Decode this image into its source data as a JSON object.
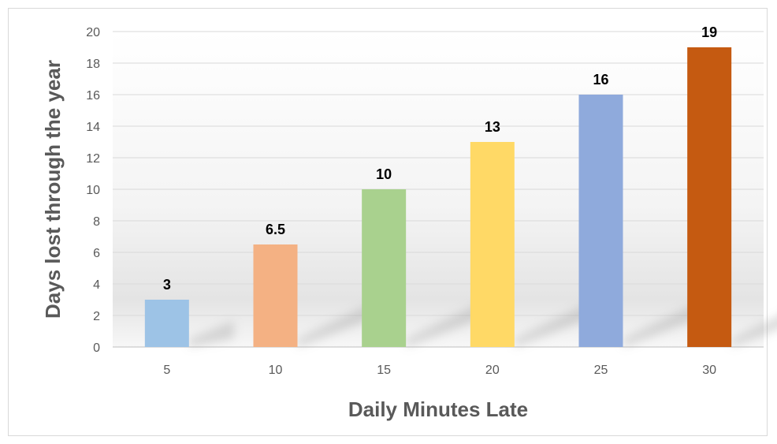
{
  "chart_data": {
    "type": "bar",
    "title": "",
    "xlabel": "Daily Minutes Late",
    "ylabel": "Days lost through the year",
    "categories": [
      "5",
      "10",
      "15",
      "20",
      "25",
      "30"
    ],
    "values": [
      3,
      6.5,
      10,
      13,
      16,
      19
    ],
    "data_labels": [
      "3",
      "6.5",
      "10",
      "13",
      "16",
      "19"
    ],
    "colors": [
      "#9DC3E6",
      "#F4B183",
      "#A9D18E",
      "#FFD966",
      "#8FAADC",
      "#C55A11"
    ],
    "ylim": [
      0,
      20
    ],
    "yticks": [
      "0",
      "2",
      "4",
      "6",
      "8",
      "10",
      "12",
      "14",
      "16",
      "18",
      "20"
    ],
    "grid": true,
    "legend": "none"
  }
}
